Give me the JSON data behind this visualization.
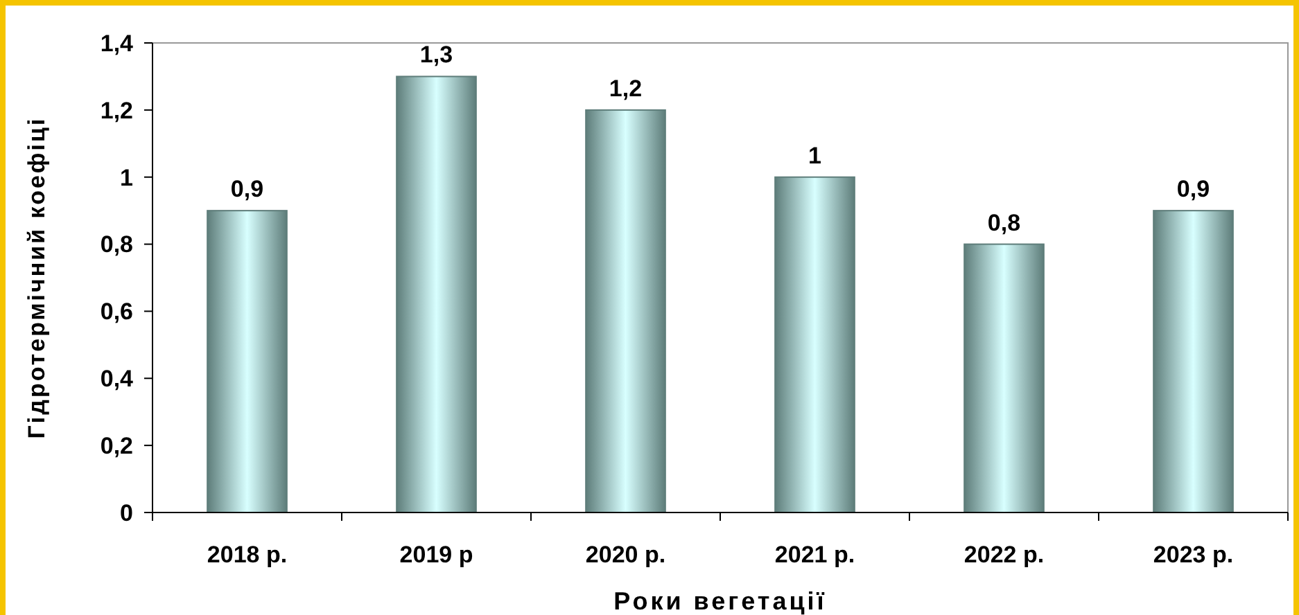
{
  "chart_data": {
    "type": "bar",
    "xlabel": "Роки вегетації",
    "ylabel": "Гідротермічний коефіці",
    "categories": [
      "2018 р.",
      "2019 р",
      "2020 р.",
      "2021 р.",
      "2022 р.",
      "2023 р."
    ],
    "values": [
      0.9,
      1.3,
      1.2,
      1,
      0.8,
      0.9
    ],
    "value_labels": [
      "0,9",
      "1,3",
      "1,2",
      "1",
      "0,8",
      "0,9"
    ],
    "color": "#5e7d7a",
    "ylim": [
      0,
      1.4
    ],
    "yticks": [
      0,
      {
        "value": 0.2,
        "label": "0,2"
      },
      {
        "value": 0.4,
        "label": "0,4"
      },
      {
        "value": 0.6,
        "label": "0,6"
      },
      {
        "value": 0.8,
        "label": "0,8"
      },
      1,
      {
        "value": 1.2,
        "label": "1,2"
      },
      {
        "value": 1.4,
        "label": "1,4"
      }
    ],
    "grid": false
  }
}
